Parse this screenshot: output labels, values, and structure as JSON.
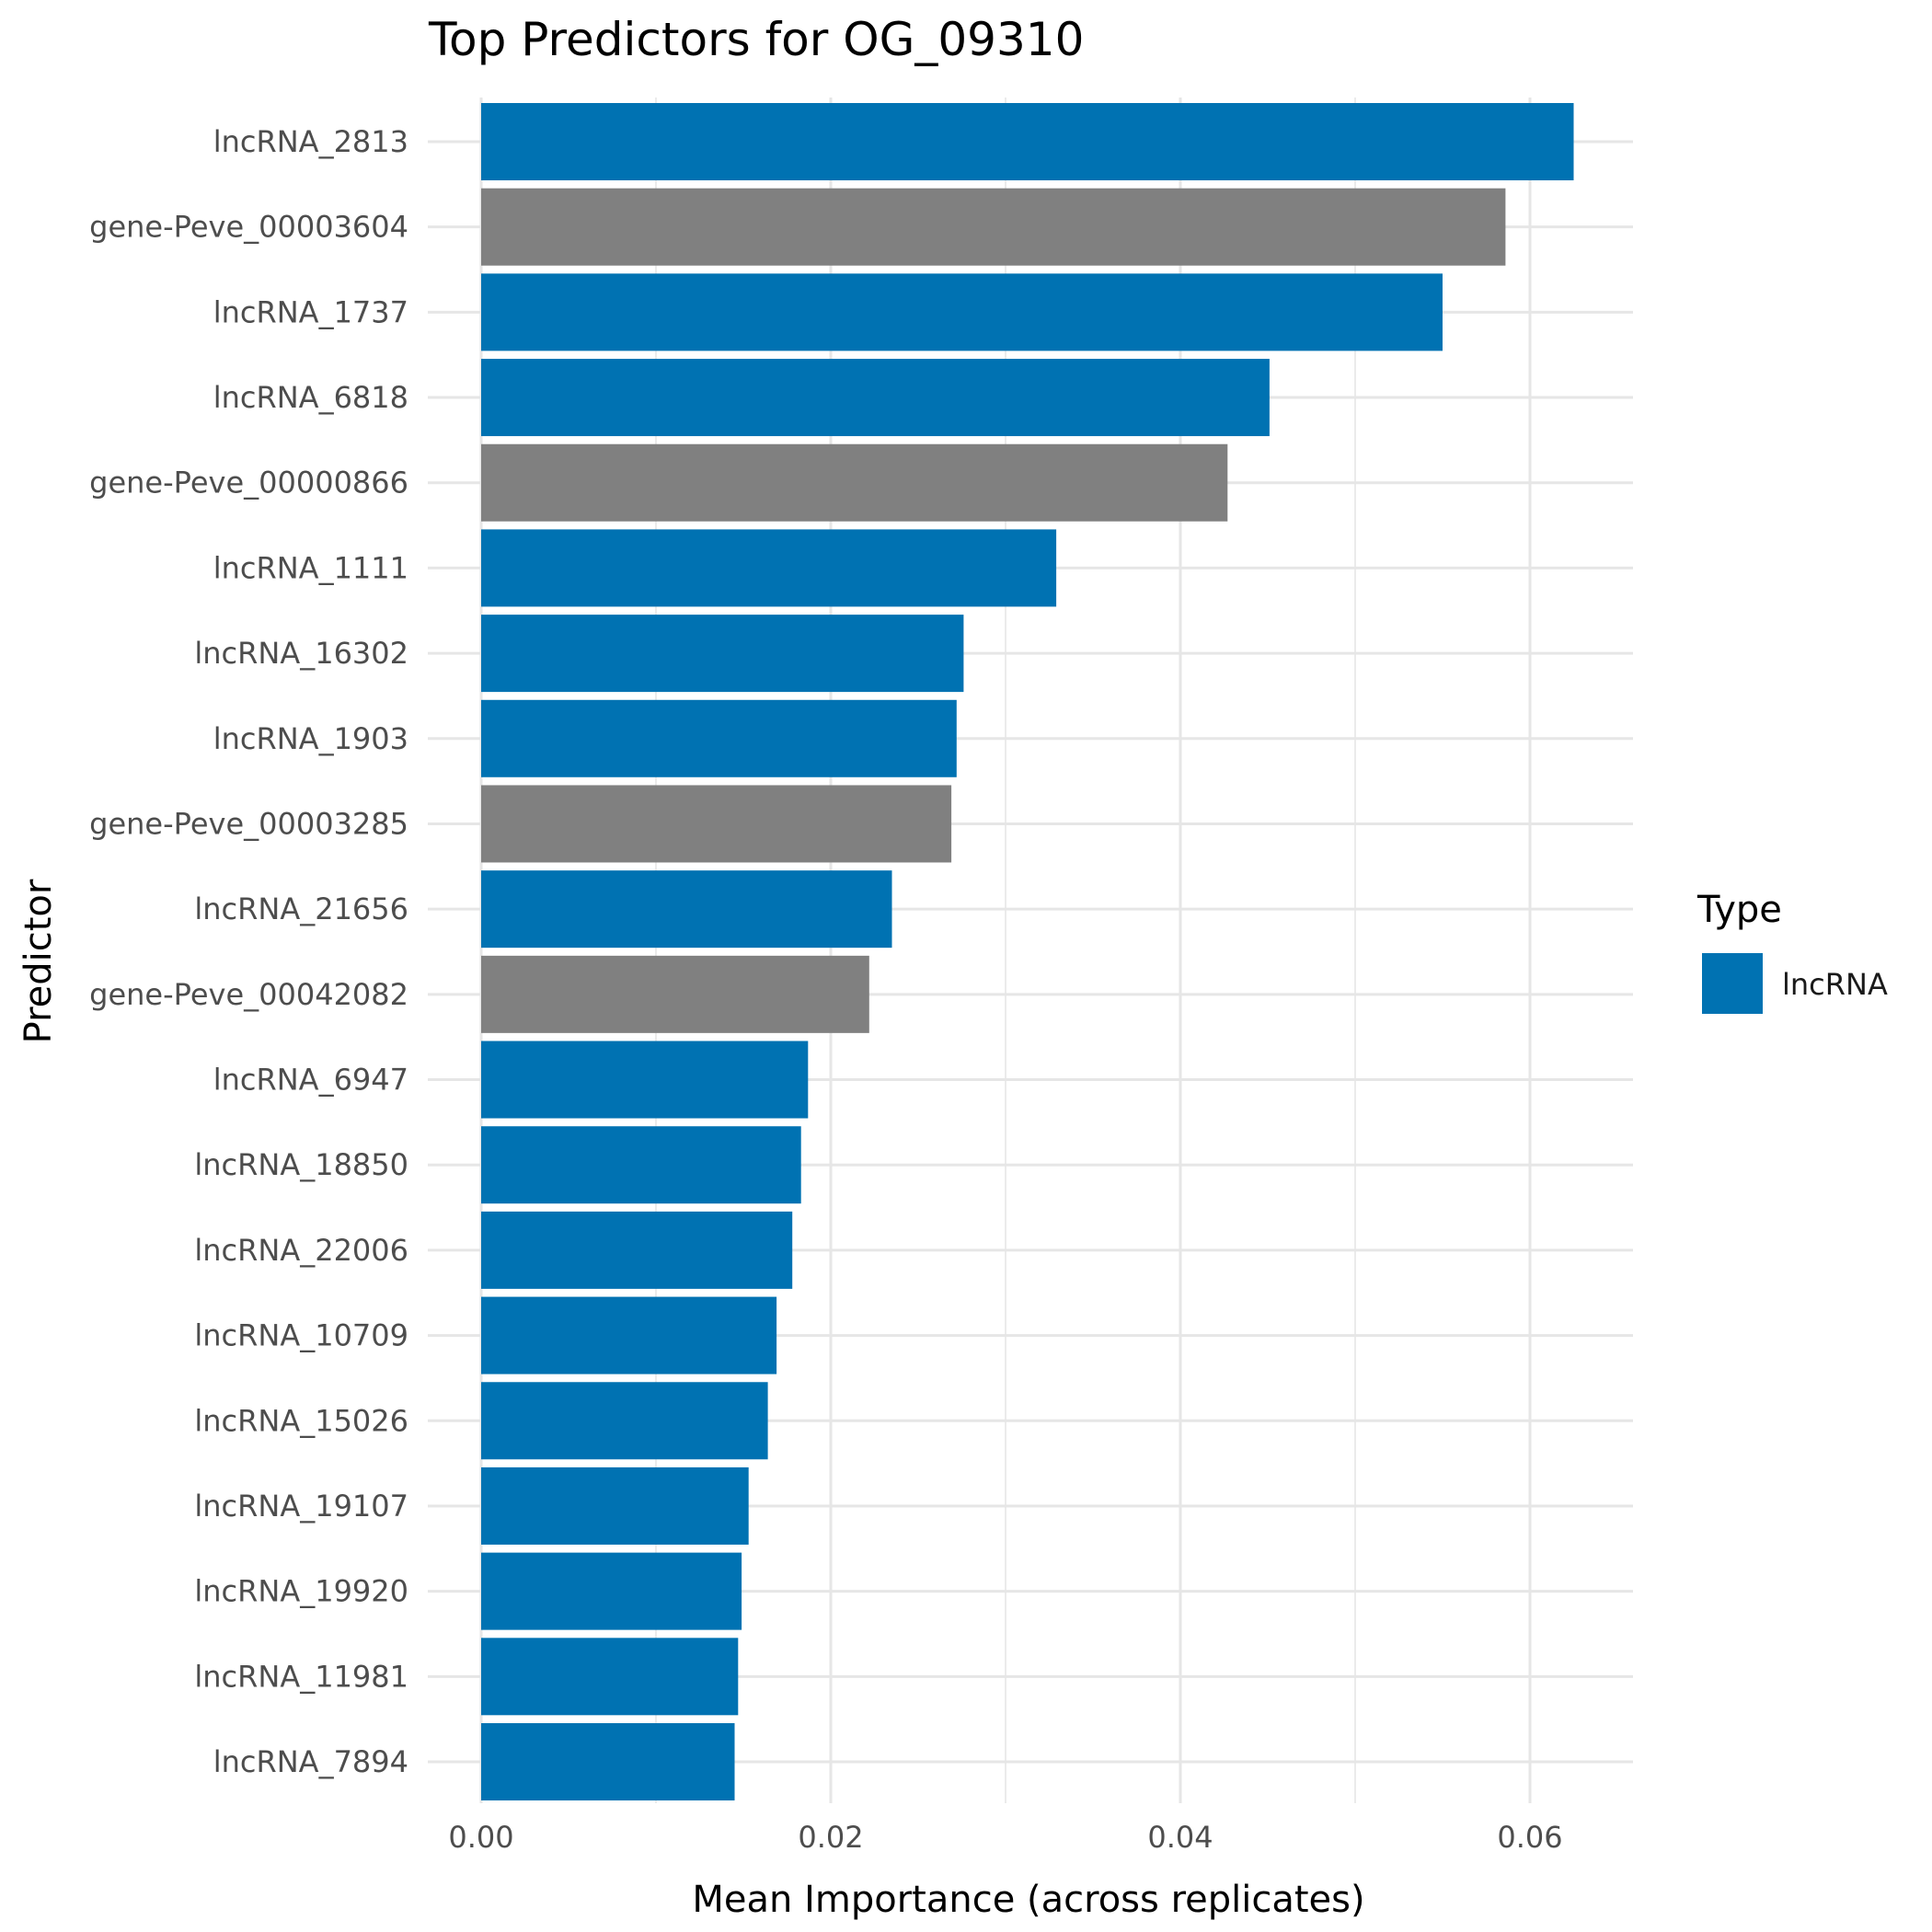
{
  "chart_data": {
    "type": "bar",
    "orientation": "horizontal",
    "title": "Top Predictors for OG_09310",
    "xlabel": "Mean Importance (across replicates)",
    "ylabel": "Predictor",
    "xlim": [
      -0.00245,
      0.0656
    ],
    "x_ticks": [
      0.0,
      0.02,
      0.04,
      0.06
    ],
    "x_tick_labels": [
      "0.00",
      "0.02",
      "0.04",
      "0.06"
    ],
    "grid": true,
    "categories": [
      "lncRNA_2813",
      "gene-Peve_00003604",
      "lncRNA_1737",
      "lncRNA_6818",
      "gene-Peve_00000866",
      "lncRNA_1111",
      "lncRNA_16302",
      "lncRNA_1903",
      "gene-Peve_00003285",
      "lncRNA_21656",
      "gene-Peve_00042082",
      "lncRNA_6947",
      "lncRNA_18850",
      "lncRNA_22006",
      "lncRNA_10709",
      "lncRNA_15026",
      "lncRNA_19107",
      "lncRNA_19920",
      "lncRNA_11981",
      "lncRNA_7894"
    ],
    "values": [
      0.0625,
      0.0586,
      0.055,
      0.0451,
      0.0427,
      0.0329,
      0.0276,
      0.0272,
      0.0269,
      0.0235,
      0.0222,
      0.0187,
      0.0183,
      0.0178,
      0.0169,
      0.0164,
      0.0153,
      0.0149,
      0.0147,
      0.0145
    ],
    "types": [
      "lncRNA",
      "gene",
      "lncRNA",
      "lncRNA",
      "gene",
      "lncRNA",
      "lncRNA",
      "lncRNA",
      "gene",
      "lncRNA",
      "gene",
      "lncRNA",
      "lncRNA",
      "lncRNA",
      "lncRNA",
      "lncRNA",
      "lncRNA",
      "lncRNA",
      "lncRNA",
      "lncRNA"
    ],
    "colors": {
      "lncRNA": "#0072B2",
      "gene": "#808080"
    },
    "legend": {
      "title": "Type",
      "placement": "right",
      "entries": [
        {
          "label": "lncRNA",
          "color": "#0072B2"
        }
      ]
    }
  }
}
